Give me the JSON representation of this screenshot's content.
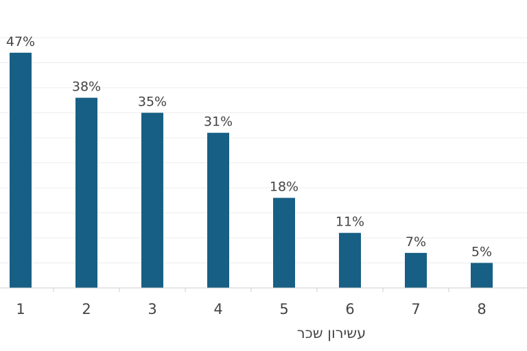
{
  "chart_data": {
    "type": "bar",
    "categories": [
      "1",
      "2",
      "3",
      "4",
      "5",
      "6",
      "7",
      "8"
    ],
    "values": [
      47,
      38,
      35,
      31,
      18,
      11,
      7,
      5
    ],
    "data_labels": [
      "47%",
      "38%",
      "35%",
      "31%",
      "18%",
      "11%",
      "7%",
      "5%"
    ],
    "xlabel": "עשירון שכר",
    "ylabel": "",
    "ylim": [
      0,
      50
    ],
    "grid": true,
    "bar_color": "#175f84",
    "grid_color": "#ececec"
  }
}
